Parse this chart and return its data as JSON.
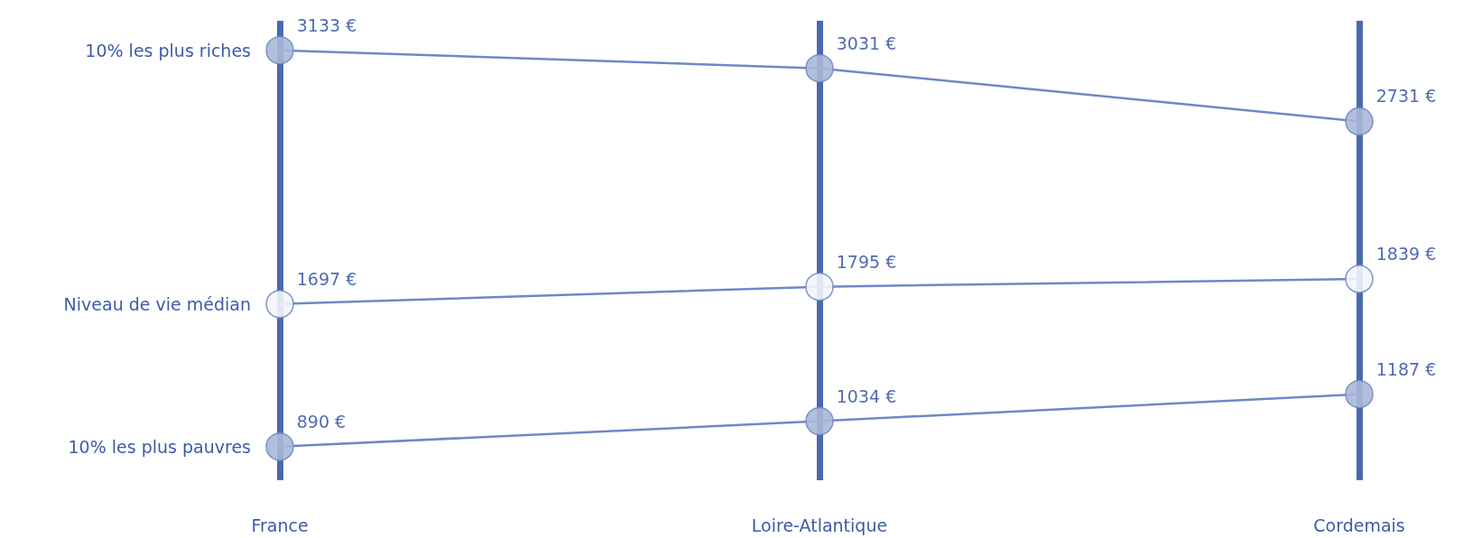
{
  "chart_data": {
    "type": "line",
    "categories": [
      "France",
      "Loire-Atlantique",
      "Cordemais"
    ],
    "series": [
      {
        "name": "10% les plus riches",
        "color": "#7088c4",
        "colors": [
          "#aab8d8",
          "#aab8d8",
          "#aab8d8"
        ],
        "values": [
          3133,
          3031,
          2731
        ],
        "value_labels": [
          "3133 €",
          "3031 €",
          "2731 €"
        ]
      },
      {
        "name": "Niveau de vie médian",
        "color": "#7088c4",
        "colors": [
          "#f3f5fb",
          "#f3f5fb",
          "#f3f5fb"
        ],
        "values": [
          1697,
          1795,
          1839
        ],
        "value_labels": [
          "1697 €",
          "1795 €",
          "1839 €"
        ]
      },
      {
        "name": "10% les plus pauvres",
        "color": "#7088c4",
        "colors": [
          "#aab8d8",
          "#aab8d8",
          "#aab8d8"
        ],
        "values": [
          890,
          1034,
          1187
        ],
        "value_labels": [
          "890 €",
          "1034 €",
          "1187 €"
        ]
      }
    ],
    "ylim": [
      700,
      3300
    ],
    "grid": "x",
    "legend": false,
    "tick_labels": "x",
    "marker": "circle",
    "line_style": "solid"
  }
}
